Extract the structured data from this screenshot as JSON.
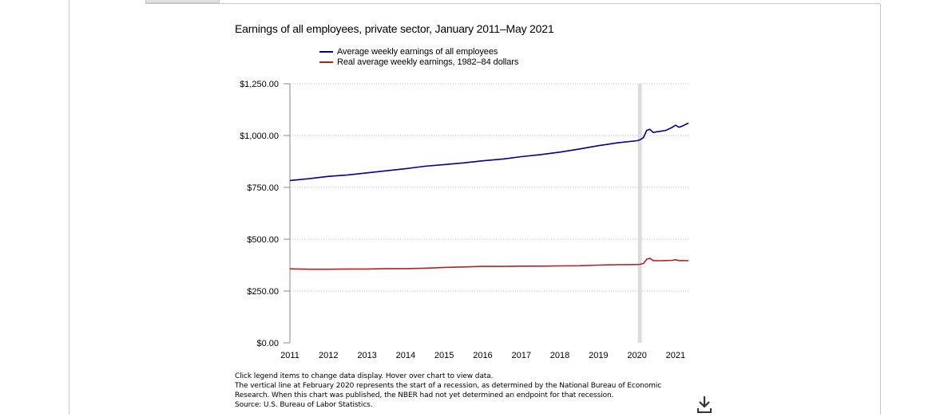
{
  "chart_data": {
    "type": "line",
    "title": "Earnings of all employees, private sector, January 2011–May 2021",
    "x_start": "2011-01",
    "x_end": "2021-05",
    "x_ticks": [
      "2011",
      "2012",
      "2013",
      "2014",
      "2015",
      "2016",
      "2017",
      "2018",
      "2019",
      "2020",
      "2021"
    ],
    "y_ticks": [
      "$0.00",
      "$250.00",
      "$500.00",
      "$750.00",
      "$1,000.00",
      "$1,250.00"
    ],
    "ylim": [
      0,
      1250
    ],
    "grid": true,
    "legend_position": "top",
    "recession_start": "2020-02",
    "series": [
      {
        "name": "Average weekly earnings of all employees",
        "color": "#00008b",
        "points": [
          [
            "2011-01",
            783
          ],
          [
            "2011-07",
            792
          ],
          [
            "2012-01",
            803
          ],
          [
            "2012-07",
            810
          ],
          [
            "2013-01",
            820
          ],
          [
            "2013-07",
            830
          ],
          [
            "2014-01",
            840
          ],
          [
            "2014-07",
            852
          ],
          [
            "2015-01",
            860
          ],
          [
            "2015-07",
            868
          ],
          [
            "2016-01",
            878
          ],
          [
            "2016-07",
            886
          ],
          [
            "2017-01",
            898
          ],
          [
            "2017-07",
            908
          ],
          [
            "2018-01",
            920
          ],
          [
            "2018-07",
            935
          ],
          [
            "2019-01",
            951
          ],
          [
            "2019-07",
            965
          ],
          [
            "2020-01",
            975
          ],
          [
            "2020-02",
            980
          ],
          [
            "2020-03",
            990
          ],
          [
            "2020-04",
            1025
          ],
          [
            "2020-05",
            1030
          ],
          [
            "2020-06",
            1015
          ],
          [
            "2020-08",
            1020
          ],
          [
            "2020-10",
            1025
          ],
          [
            "2020-12",
            1040
          ],
          [
            "2021-01",
            1050
          ],
          [
            "2021-02",
            1040
          ],
          [
            "2021-03",
            1045
          ],
          [
            "2021-05",
            1060
          ]
        ]
      },
      {
        "name": "Real average weekly earnings, 1982–84 dollars",
        "color": "#b22222",
        "points": [
          [
            "2011-01",
            357
          ],
          [
            "2011-07",
            355
          ],
          [
            "2012-01",
            355
          ],
          [
            "2012-07",
            356
          ],
          [
            "2013-01",
            356
          ],
          [
            "2013-07",
            358
          ],
          [
            "2014-01",
            358
          ],
          [
            "2014-07",
            360
          ],
          [
            "2015-01",
            364
          ],
          [
            "2015-07",
            366
          ],
          [
            "2016-01",
            369
          ],
          [
            "2016-07",
            369
          ],
          [
            "2017-01",
            370
          ],
          [
            "2017-07",
            370
          ],
          [
            "2018-01",
            371
          ],
          [
            "2018-07",
            372
          ],
          [
            "2019-01",
            375
          ],
          [
            "2019-07",
            377
          ],
          [
            "2020-01",
            378
          ],
          [
            "2020-02",
            379
          ],
          [
            "2020-03",
            383
          ],
          [
            "2020-04",
            403
          ],
          [
            "2020-05",
            408
          ],
          [
            "2020-06",
            397
          ],
          [
            "2020-08",
            396
          ],
          [
            "2020-10",
            397
          ],
          [
            "2020-12",
            398
          ],
          [
            "2021-01",
            401
          ],
          [
            "2021-02",
            397
          ],
          [
            "2021-03",
            397
          ],
          [
            "2021-05",
            396
          ]
        ]
      }
    ]
  },
  "notes": [
    "Click legend items to change data display. Hover over chart to view data.",
    "The vertical line at February 2020 represents the start of a recession, as determined by the National Bureau of Economic",
    "Research. When this chart was published, the NBER had not yet determined an endpoint for that recession.",
    "Source: U.S. Bureau of Labor Statistics."
  ]
}
